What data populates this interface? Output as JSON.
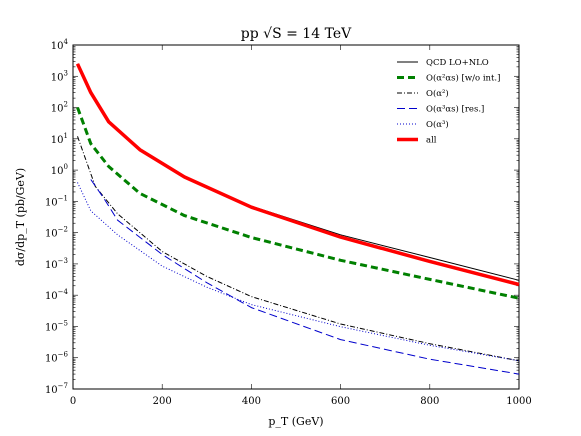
{
  "chart_data": {
    "type": "line",
    "title": "pp √S = 14 TeV",
    "xlabel": "p_T (GeV)",
    "ylabel": "dσ/dp_T (pb/GeV)",
    "xlim": [
      0,
      1000
    ],
    "ylim": [
      1e-07,
      10000.0
    ],
    "yscale": "log",
    "grid": false,
    "legend_position": "top-right",
    "x_ticks": [
      0,
      200,
      400,
      600,
      800,
      1000
    ],
    "x_tick_labels": [
      "0",
      "200",
      "400",
      "600",
      "800",
      "1000"
    ],
    "y_ticks": [
      1e-07,
      1e-06,
      1e-05,
      0.0001,
      0.001,
      0.01,
      0.1,
      1,
      10,
      100,
      1000,
      10000
    ],
    "y_tick_labels": [
      {
        "base": "10",
        "exp": "−7"
      },
      {
        "base": "10",
        "exp": "−6"
      },
      {
        "base": "10",
        "exp": "−5"
      },
      {
        "base": "10",
        "exp": "−4"
      },
      {
        "base": "10",
        "exp": "−3"
      },
      {
        "base": "10",
        "exp": "−2"
      },
      {
        "base": "10",
        "exp": "−1"
      },
      {
        "base": "10",
        "exp": "0"
      },
      {
        "base": "10",
        "exp": "1"
      },
      {
        "base": "10",
        "exp": "2"
      },
      {
        "base": "10",
        "exp": "3"
      },
      {
        "base": "10",
        "exp": "4"
      }
    ],
    "series": [
      {
        "name": "QCD LO+NLO",
        "color": "#000000",
        "style": "solid",
        "x": [
          10,
          40,
          80,
          150,
          250,
          400,
          600,
          800,
          1000
        ],
        "y": [
          2500,
          300,
          35,
          4.5,
          0.6,
          0.07,
          0.0085,
          0.0016,
          0.0003
        ]
      },
      {
        "name": "O(α²αs) [w/o int.]",
        "color": "#008000",
        "style": "dashed",
        "x": [
          10,
          40,
          80,
          150,
          250,
          400,
          600,
          800,
          1000
        ],
        "y": [
          100,
          7,
          1.3,
          0.18,
          0.035,
          0.007,
          0.0013,
          0.00032,
          8e-05
        ]
      },
      {
        "name": "O(α²)",
        "color": "#000000",
        "style": "dashdot",
        "x": [
          10,
          50,
          100,
          200,
          300,
          400,
          600,
          800,
          1000
        ],
        "y": [
          12,
          0.3,
          0.04,
          0.0025,
          0.0004,
          9e-05,
          1.2e-05,
          2.8e-06,
          8e-07
        ]
      },
      {
        "name": "O(α³αs) [res.]",
        "color": "#0000cc",
        "style": "longdash",
        "x": [
          40,
          70,
          100,
          200,
          300,
          400,
          600,
          800,
          1000
        ],
        "y": [
          0.5,
          0.12,
          0.025,
          0.002,
          0.00025,
          4e-05,
          3.8e-06,
          9e-07,
          3e-07
        ]
      },
      {
        "name": "O(α³)",
        "color": "#0000cc",
        "style": "dotted",
        "x": [
          10,
          40,
          100,
          200,
          300,
          400,
          600,
          800,
          1000
        ],
        "y": [
          0.4,
          0.05,
          0.0085,
          0.00085,
          0.00018,
          5e-05,
          9.8e-06,
          2.5e-06,
          8e-07
        ]
      },
      {
        "name": "all",
        "color": "#ff0000",
        "style": "thick",
        "x": [
          10,
          40,
          80,
          150,
          250,
          400,
          600,
          800,
          1000
        ],
        "y": [
          2500,
          300,
          35,
          4.5,
          0.6,
          0.065,
          0.0072,
          0.0012,
          0.00022
        ]
      }
    ]
  }
}
